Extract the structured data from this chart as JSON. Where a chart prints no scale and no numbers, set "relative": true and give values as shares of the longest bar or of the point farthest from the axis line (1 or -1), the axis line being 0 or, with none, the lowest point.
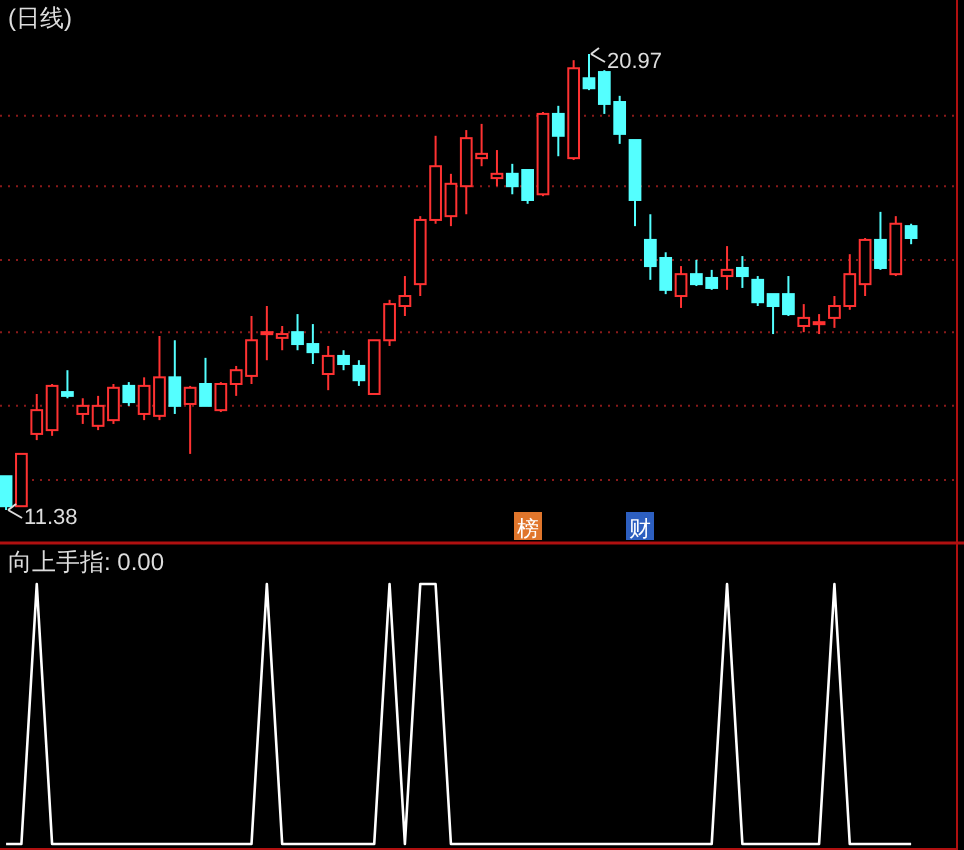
{
  "chart_data": [
    {
      "type": "candlestick",
      "title": "(日线)",
      "categories": [
        null,
        null,
        null,
        null,
        null,
        null,
        null,
        null,
        null,
        null,
        null,
        null,
        null,
        null,
        null,
        null,
        null,
        null,
        null,
        null,
        null,
        null,
        null,
        null,
        null,
        null,
        null,
        null,
        null,
        null,
        null,
        null,
        null,
        null,
        null,
        null,
        null,
        null,
        null,
        null,
        null,
        null,
        null,
        null,
        null,
        null,
        null,
        null,
        null,
        null,
        null,
        null,
        null,
        null,
        null,
        null,
        null,
        null,
        null,
        null
      ],
      "ohlc": [
        [
          12.09,
          12.09,
          11.38,
          11.46
        ],
        [
          11.46,
          12.56,
          11.46,
          12.56
        ],
        [
          12.98,
          13.82,
          12.85,
          13.48
        ],
        [
          13.06,
          14.03,
          12.94,
          13.99
        ],
        [
          13.86,
          14.32,
          13.73,
          13.78
        ],
        [
          13.4,
          13.73,
          13.19,
          13.57
        ],
        [
          13.15,
          13.78,
          13.06,
          13.57
        ],
        [
          13.27,
          14.03,
          13.19,
          13.95
        ],
        [
          13.99,
          14.07,
          13.57,
          13.65
        ],
        [
          13.4,
          14.17,
          13.27,
          13.99
        ],
        [
          13.36,
          15.04,
          13.27,
          14.17
        ],
        [
          14.17,
          14.95,
          13.4,
          13.57
        ],
        [
          13.61,
          13.99,
          12.56,
          13.95
        ],
        [
          14.03,
          14.58,
          13.57,
          13.57
        ],
        [
          13.48,
          14.07,
          13.44,
          14.03
        ],
        [
          14.03,
          14.41,
          13.78,
          14.32
        ],
        [
          14.2,
          15.46,
          14.03,
          14.95
        ],
        [
          15.08,
          15.67,
          14.53,
          15.12
        ],
        [
          15.0,
          15.25,
          14.74,
          15.08
        ],
        [
          15.12,
          15.5,
          14.74,
          14.87
        ],
        [
          14.87,
          15.29,
          14.45,
          14.7
        ],
        [
          14.24,
          14.83,
          13.9,
          14.62
        ],
        [
          14.62,
          14.74,
          14.32,
          14.45
        ],
        [
          14.41,
          14.53,
          13.99,
          14.11
        ],
        [
          13.82,
          14.95,
          13.82,
          14.95
        ],
        [
          14.95,
          15.8,
          14.83,
          15.71
        ],
        [
          15.67,
          16.3,
          15.46,
          15.88
        ],
        [
          16.13,
          17.56,
          15.88,
          17.48
        ],
        [
          17.48,
          19.25,
          17.4,
          18.61
        ],
        [
          17.56,
          18.45,
          17.35,
          18.24
        ],
        [
          18.19,
          19.37,
          17.6,
          19.2
        ],
        [
          18.78,
          19.5,
          18.61,
          18.87
        ],
        [
          18.36,
          18.95,
          18.19,
          18.45
        ],
        [
          18.45,
          18.66,
          18.02,
          18.19
        ],
        [
          18.53,
          18.53,
          17.82,
          17.9
        ],
        [
          18.02,
          19.75,
          17.98,
          19.71
        ],
        [
          19.71,
          19.88,
          18.82,
          19.25
        ],
        [
          18.78,
          20.84,
          18.74,
          20.67
        ],
        [
          20.46,
          20.97,
          20.21,
          20.25
        ],
        [
          20.59,
          20.63,
          19.71,
          19.92
        ],
        [
          19.96,
          20.09,
          19.08,
          19.29
        ],
        [
          19.16,
          19.16,
          17.35,
          17.9
        ],
        [
          17.06,
          17.6,
          16.22,
          16.51
        ],
        [
          16.68,
          16.8,
          15.92,
          16.01
        ],
        [
          15.88,
          16.51,
          15.63,
          16.34
        ],
        [
          16.34,
          16.64,
          16.09,
          16.13
        ],
        [
          16.26,
          16.43,
          16.01,
          16.05
        ],
        [
          16.3,
          16.93,
          16.01,
          16.43
        ],
        [
          16.47,
          16.72,
          16.05,
          16.3
        ],
        [
          16.22,
          16.3,
          15.67,
          15.75
        ],
        [
          15.92,
          15.92,
          15.08,
          15.67
        ],
        [
          15.92,
          16.3,
          15.46,
          15.5
        ],
        [
          15.25,
          15.71,
          15.12,
          15.42
        ],
        [
          15.29,
          15.5,
          15.08,
          15.33
        ],
        [
          15.42,
          15.88,
          15.21,
          15.67
        ],
        [
          15.67,
          16.76,
          15.59,
          16.34
        ],
        [
          16.13,
          17.1,
          15.88,
          17.06
        ],
        [
          17.06,
          17.65,
          16.43,
          16.47
        ],
        [
          16.34,
          17.56,
          16.3,
          17.4
        ],
        [
          17.35,
          17.4,
          16.97,
          17.1
        ]
      ],
      "colors": [
        "#54ffff",
        "#ff3232",
        "#ff3232",
        "#ff3232",
        "#54ffff",
        "#ff3232",
        "#ff3232",
        "#ff3232",
        "#54ffff",
        "#ff3232",
        "#ff3232",
        "#54ffff",
        "#ff3232",
        "#54ffff",
        "#ff3232",
        "#ff3232",
        "#ff3232",
        "#ff3232",
        "#ff3232",
        "#54ffff",
        "#54ffff",
        "#ff3232",
        "#54ffff",
        "#54ffff",
        "#ff3232",
        "#ff3232",
        "#ff3232",
        "#ff3232",
        "#ff3232",
        "#ff3232",
        "#ff3232",
        "#ff3232",
        "#ff3232",
        "#54ffff",
        "#54ffff",
        "#ff3232",
        "#54ffff",
        "#ff3232",
        "#54ffff",
        "#54ffff",
        "#54ffff",
        "#54ffff",
        "#54ffff",
        "#54ffff",
        "#ff3232",
        "#54ffff",
        "#54ffff",
        "#ff3232",
        "#54ffff",
        "#54ffff",
        "#54ffff",
        "#54ffff",
        "#ff3232",
        "#ff3232",
        "#ff3232",
        "#ff3232",
        "#ff3232",
        "#54ffff",
        "#ff3232",
        "#54ffff"
      ],
      "yticks": [
        {
          "value": 12.01,
          "label": null
        },
        {
          "value": 13.57,
          "label": null
        },
        {
          "value": 15.12,
          "label": null
        },
        {
          "value": 16.64,
          "label": null
        },
        {
          "value": 18.19,
          "label": null
        },
        {
          "value": 19.67,
          "label": null
        }
      ],
      "grid": "y",
      "annotations": [
        "20.97",
        "11.38",
        "榜",
        "财"
      ]
    },
    {
      "type": "line",
      "title": "向上手指: 0.00",
      "relative": true,
      "categories": [
        null,
        null,
        null,
        null,
        null,
        null,
        null,
        null,
        null,
        null,
        null,
        null,
        null,
        null,
        null,
        null,
        null,
        null,
        null,
        null,
        null,
        null,
        null,
        null,
        null,
        null,
        null,
        null,
        null,
        null,
        null,
        null,
        null,
        null,
        null,
        null,
        null,
        null,
        null,
        null,
        null,
        null,
        null,
        null,
        null,
        null,
        null,
        null,
        null,
        null,
        null,
        null,
        null,
        null,
        null,
        null,
        null,
        null,
        null,
        null
      ],
      "series": [
        {
          "color": "#ffffff",
          "values": [
            0,
            0,
            1,
            0,
            0,
            0,
            0,
            0,
            0,
            0,
            0,
            0,
            0,
            0,
            0,
            0,
            0,
            1,
            0,
            0,
            0,
            0,
            0,
            0,
            0,
            1,
            0,
            1,
            1,
            0,
            0,
            0,
            0,
            0,
            0,
            0,
            0,
            0,
            0,
            0,
            0,
            0,
            0,
            0,
            0,
            0,
            0,
            1,
            0,
            0,
            0,
            0,
            0,
            0,
            1,
            0,
            0,
            0,
            0,
            0
          ]
        }
      ]
    }
  ]
}
